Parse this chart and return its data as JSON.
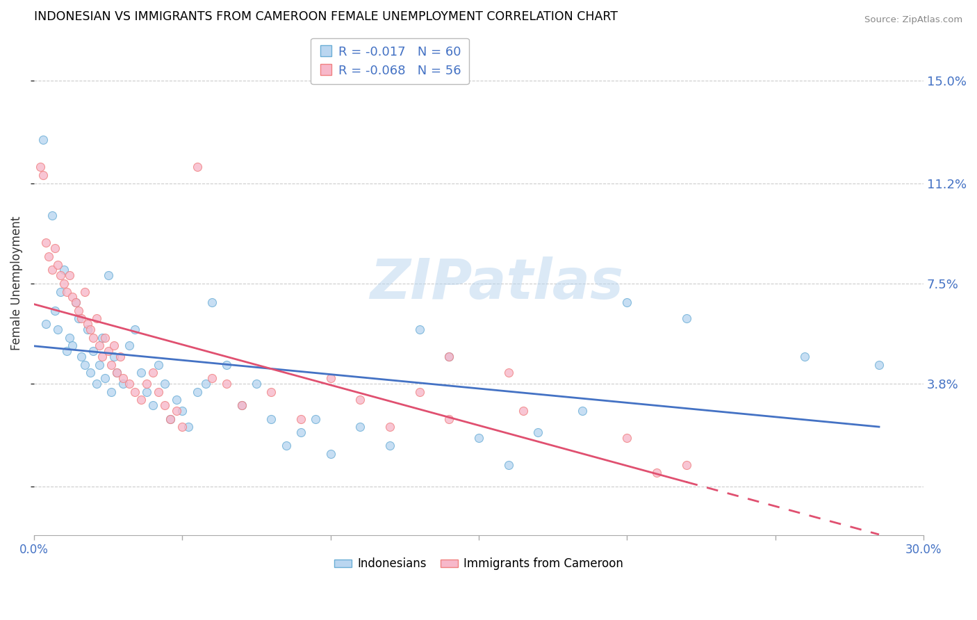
{
  "title": "INDONESIAN VS IMMIGRANTS FROM CAMEROON FEMALE UNEMPLOYMENT CORRELATION CHART",
  "source": "Source: ZipAtlas.com",
  "ylabel": "Female Unemployment",
  "ytick_vals": [
    0.0,
    0.038,
    0.075,
    0.112,
    0.15
  ],
  "ytick_labels": [
    "",
    "3.8%",
    "7.5%",
    "11.2%",
    "15.0%"
  ],
  "xrange": [
    0.0,
    0.3
  ],
  "yrange": [
    -0.018,
    0.168
  ],
  "legend_blue_R": "R = -0.017",
  "legend_blue_N": "N = 60",
  "legend_pink_R": "R = -0.068",
  "legend_pink_N": "N = 56",
  "blue_fill": "#bad6f0",
  "pink_fill": "#f7b8ca",
  "blue_edge": "#6baed6",
  "pink_edge": "#f08080",
  "blue_line": "#4472c4",
  "pink_line": "#e05070",
  "watermark_text": "ZIPatlas",
  "marker_size": 75,
  "alpha": 0.8,
  "blue_scatter": [
    [
      0.003,
      0.128
    ],
    [
      0.004,
      0.06
    ],
    [
      0.006,
      0.1
    ],
    [
      0.007,
      0.065
    ],
    [
      0.008,
      0.058
    ],
    [
      0.009,
      0.072
    ],
    [
      0.01,
      0.08
    ],
    [
      0.011,
      0.05
    ],
    [
      0.012,
      0.055
    ],
    [
      0.013,
      0.052
    ],
    [
      0.014,
      0.068
    ],
    [
      0.015,
      0.062
    ],
    [
      0.016,
      0.048
    ],
    [
      0.017,
      0.045
    ],
    [
      0.018,
      0.058
    ],
    [
      0.019,
      0.042
    ],
    [
      0.02,
      0.05
    ],
    [
      0.021,
      0.038
    ],
    [
      0.022,
      0.045
    ],
    [
      0.023,
      0.055
    ],
    [
      0.024,
      0.04
    ],
    [
      0.025,
      0.078
    ],
    [
      0.026,
      0.035
    ],
    [
      0.027,
      0.048
    ],
    [
      0.028,
      0.042
    ],
    [
      0.03,
      0.038
    ],
    [
      0.032,
      0.052
    ],
    [
      0.034,
      0.058
    ],
    [
      0.036,
      0.042
    ],
    [
      0.038,
      0.035
    ],
    [
      0.04,
      0.03
    ],
    [
      0.042,
      0.045
    ],
    [
      0.044,
      0.038
    ],
    [
      0.046,
      0.025
    ],
    [
      0.048,
      0.032
    ],
    [
      0.05,
      0.028
    ],
    [
      0.052,
      0.022
    ],
    [
      0.055,
      0.035
    ],
    [
      0.058,
      0.038
    ],
    [
      0.06,
      0.068
    ],
    [
      0.065,
      0.045
    ],
    [
      0.07,
      0.03
    ],
    [
      0.075,
      0.038
    ],
    [
      0.08,
      0.025
    ],
    [
      0.085,
      0.015
    ],
    [
      0.09,
      0.02
    ],
    [
      0.095,
      0.025
    ],
    [
      0.1,
      0.012
    ],
    [
      0.11,
      0.022
    ],
    [
      0.12,
      0.015
    ],
    [
      0.13,
      0.058
    ],
    [
      0.14,
      0.048
    ],
    [
      0.15,
      0.018
    ],
    [
      0.16,
      0.008
    ],
    [
      0.17,
      0.02
    ],
    [
      0.185,
      0.028
    ],
    [
      0.2,
      0.068
    ],
    [
      0.22,
      0.062
    ],
    [
      0.26,
      0.048
    ],
    [
      0.285,
      0.045
    ]
  ],
  "pink_scatter": [
    [
      0.002,
      0.118
    ],
    [
      0.003,
      0.115
    ],
    [
      0.004,
      0.09
    ],
    [
      0.005,
      0.085
    ],
    [
      0.006,
      0.08
    ],
    [
      0.007,
      0.088
    ],
    [
      0.008,
      0.082
    ],
    [
      0.009,
      0.078
    ],
    [
      0.01,
      0.075
    ],
    [
      0.011,
      0.072
    ],
    [
      0.012,
      0.078
    ],
    [
      0.013,
      0.07
    ],
    [
      0.014,
      0.068
    ],
    [
      0.015,
      0.065
    ],
    [
      0.016,
      0.062
    ],
    [
      0.017,
      0.072
    ],
    [
      0.018,
      0.06
    ],
    [
      0.019,
      0.058
    ],
    [
      0.02,
      0.055
    ],
    [
      0.021,
      0.062
    ],
    [
      0.022,
      0.052
    ],
    [
      0.023,
      0.048
    ],
    [
      0.024,
      0.055
    ],
    [
      0.025,
      0.05
    ],
    [
      0.026,
      0.045
    ],
    [
      0.027,
      0.052
    ],
    [
      0.028,
      0.042
    ],
    [
      0.029,
      0.048
    ],
    [
      0.03,
      0.04
    ],
    [
      0.032,
      0.038
    ],
    [
      0.034,
      0.035
    ],
    [
      0.036,
      0.032
    ],
    [
      0.038,
      0.038
    ],
    [
      0.04,
      0.042
    ],
    [
      0.042,
      0.035
    ],
    [
      0.044,
      0.03
    ],
    [
      0.046,
      0.025
    ],
    [
      0.048,
      0.028
    ],
    [
      0.05,
      0.022
    ],
    [
      0.055,
      0.118
    ],
    [
      0.06,
      0.04
    ],
    [
      0.065,
      0.038
    ],
    [
      0.07,
      0.03
    ],
    [
      0.08,
      0.035
    ],
    [
      0.09,
      0.025
    ],
    [
      0.1,
      0.04
    ],
    [
      0.11,
      0.032
    ],
    [
      0.12,
      0.022
    ],
    [
      0.13,
      0.035
    ],
    [
      0.14,
      0.025
    ],
    [
      0.16,
      0.042
    ],
    [
      0.2,
      0.018
    ],
    [
      0.21,
      0.005
    ],
    [
      0.22,
      0.008
    ],
    [
      0.14,
      0.048
    ],
    [
      0.165,
      0.028
    ]
  ]
}
